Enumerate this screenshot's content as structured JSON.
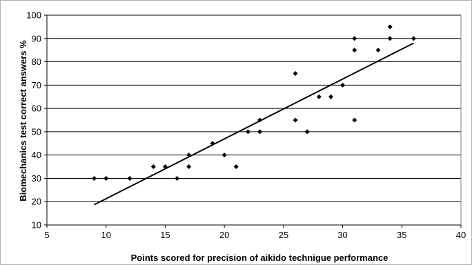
{
  "chart_data": {
    "type": "scatter",
    "title": "",
    "xlabel": "Points scored for precision of aikido technigue performance",
    "ylabel": "Biomechanics test correct answers %",
    "xlim": [
      5,
      40
    ],
    "ylim": [
      10,
      100
    ],
    "x_ticks": [
      5,
      10,
      15,
      20,
      25,
      30,
      35,
      40
    ],
    "y_ticks": [
      10,
      20,
      30,
      40,
      50,
      60,
      70,
      80,
      90,
      100
    ],
    "grid": "horizontal",
    "legend": "none",
    "colors": {
      "points": "#000000",
      "grid": "#000000",
      "trendline": "#000000"
    },
    "series": [
      {
        "points": [
          {
            "x": 9,
            "y": 30
          },
          {
            "x": 10,
            "y": 30
          },
          {
            "x": 12,
            "y": 30
          },
          {
            "x": 14,
            "y": 35
          },
          {
            "x": 15,
            "y": 35
          },
          {
            "x": 16,
            "y": 30
          },
          {
            "x": 17,
            "y": 35
          },
          {
            "x": 17,
            "y": 40
          },
          {
            "x": 19,
            "y": 45
          },
          {
            "x": 20,
            "y": 40
          },
          {
            "x": 21,
            "y": 35
          },
          {
            "x": 22,
            "y": 50
          },
          {
            "x": 23,
            "y": 50
          },
          {
            "x": 23,
            "y": 55
          },
          {
            "x": 26,
            "y": 75
          },
          {
            "x": 26,
            "y": 55
          },
          {
            "x": 27,
            "y": 50
          },
          {
            "x": 28,
            "y": 65
          },
          {
            "x": 29,
            "y": 65
          },
          {
            "x": 30,
            "y": 70
          },
          {
            "x": 31,
            "y": 90
          },
          {
            "x": 31,
            "y": 85
          },
          {
            "x": 31,
            "y": 55
          },
          {
            "x": 33,
            "y": 85
          },
          {
            "x": 34,
            "y": 95
          },
          {
            "x": 34,
            "y": 90
          },
          {
            "x": 36,
            "y": 90
          }
        ]
      }
    ],
    "trendline": {
      "x": [
        9,
        36
      ],
      "y": [
        18.7,
        88
      ]
    }
  }
}
